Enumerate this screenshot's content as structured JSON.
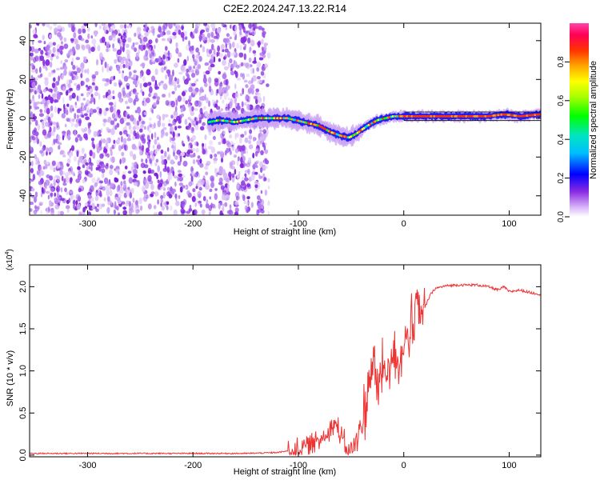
{
  "page": {
    "title": "C2E2.2024.247.13.22.R14"
  },
  "chart_data": [
    {
      "type": "heatmap",
      "xlabel": "Height of straight line (km)",
      "ylabel": "Frequency (Hz)",
      "xlim": [
        -355,
        130
      ],
      "ylim": [
        -50,
        49
      ],
      "x_ticks": [
        -300,
        -200,
        -100,
        0,
        100
      ],
      "x_tick_labels": [
        "-300",
        "-200",
        "-100",
        "0",
        "100"
      ],
      "y_ticks": [
        -40,
        -20,
        0,
        20,
        40
      ],
      "y_tick_labels": [
        "-40",
        "-20",
        "0",
        "20",
        "40"
      ],
      "noise_region_x": [
        -355,
        -128
      ],
      "signal_track": {
        "x": [
          -185,
          -175,
          -160,
          -140,
          -125,
          -110,
          -95,
          -80,
          -70,
          -60,
          -52,
          -45,
          -35,
          -25,
          -10,
          0,
          20,
          40,
          60,
          80,
          95,
          110,
          130
        ],
        "y": [
          -2,
          -1,
          -2,
          0,
          0,
          0,
          -2,
          -4,
          -7,
          -9,
          -10,
          -8,
          -4,
          -1,
          1,
          1,
          1,
          1,
          1,
          1,
          2,
          1,
          2
        ]
      },
      "colorbar": {
        "label": "Normalized spectral amplitude",
        "range": [
          0.0,
          1.0
        ],
        "ticks": [
          0.0,
          0.2,
          0.4,
          0.6,
          0.8
        ],
        "tick_labels": [
          "0.0",
          "0.2",
          "0.4",
          "0.6",
          "0.8"
        ],
        "colormap": "white-purple-blue-cyan-green-yellow-orange-red-magenta"
      },
      "grid": false,
      "legend": "none"
    },
    {
      "type": "line",
      "xlabel": "Height of straight line (km)",
      "ylabel": "SNR (10 * v/v)",
      "multiplier_label": "(x10",
      "multiplier_exponent": "4",
      "xlim": [
        -355,
        130
      ],
      "ylim": [
        -0.02,
        2.26
      ],
      "x_ticks": [
        -300,
        -200,
        -100,
        0,
        100
      ],
      "x_tick_labels": [
        "-300",
        "-200",
        "-100",
        "0",
        "100"
      ],
      "y_ticks": [
        0.0,
        0.5,
        1.0,
        1.5,
        2.0
      ],
      "y_tick_labels": [
        "0.0",
        "0.5",
        "1.0",
        "1.5",
        "2.0"
      ],
      "series": [
        {
          "color": "#ee3333",
          "x": [
            -355,
            -300,
            -250,
            -200,
            -150,
            -120,
            -100,
            -90,
            -80,
            -70,
            -65,
            -60,
            -55,
            -50,
            -45,
            -40,
            -35,
            -32,
            -30,
            -25,
            -20,
            -15,
            -10,
            -5,
            0,
            5,
            10,
            12,
            15,
            20,
            25,
            30,
            40,
            50,
            60,
            70,
            80,
            90,
            95,
            100,
            110,
            120,
            130
          ],
          "y": [
            0.02,
            0.02,
            0.02,
            0.02,
            0.02,
            0.03,
            0.07,
            0.12,
            0.18,
            0.32,
            0.38,
            0.22,
            0.1,
            0.05,
            0.15,
            0.35,
            0.65,
            0.95,
            1.1,
            0.75,
            1.05,
            0.95,
            1.25,
            1.1,
            1.3,
            1.45,
            1.55,
            1.85,
            1.6,
            1.75,
            1.9,
            1.98,
            2.01,
            2.02,
            2.02,
            2.02,
            2.0,
            1.96,
            2.0,
            1.94,
            1.96,
            1.93,
            1.91
          ]
        }
      ],
      "grid": false,
      "legend": "none"
    }
  ]
}
